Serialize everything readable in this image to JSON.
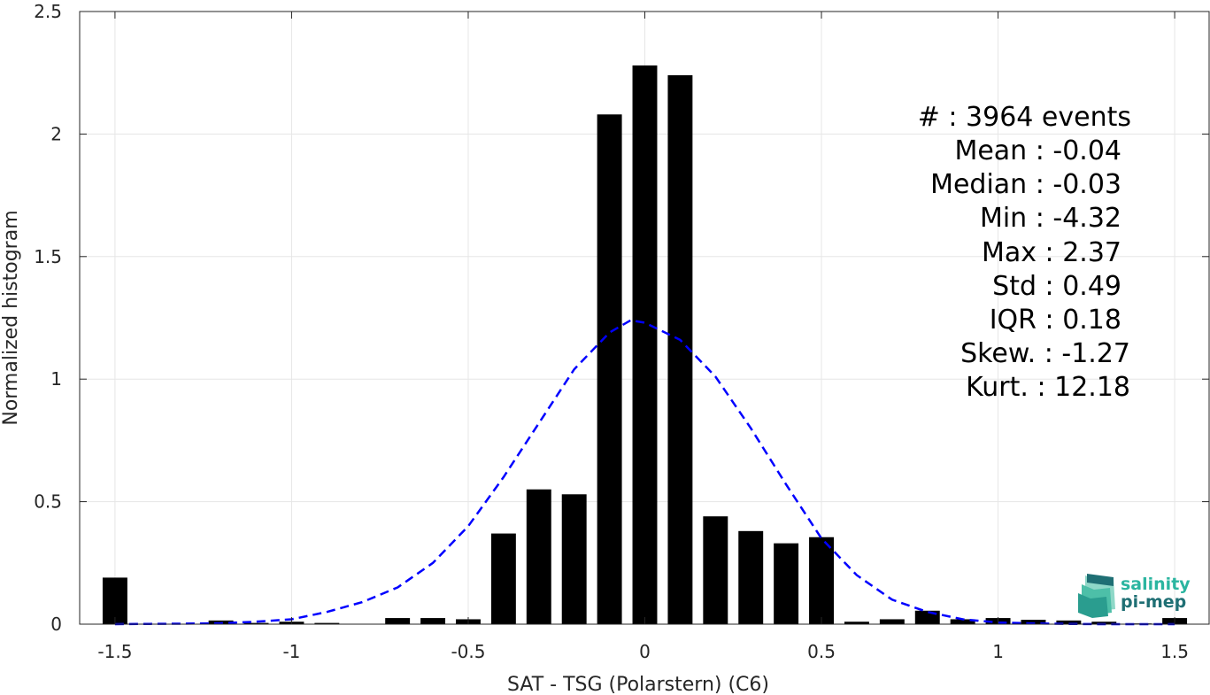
{
  "chart_data": {
    "type": "bar",
    "xlabel": "SAT - TSG (Polarstern) (C6)",
    "ylabel": "Normalized histogram",
    "xlim": [
      -1.6,
      1.6
    ],
    "ylim": [
      0,
      2.5
    ],
    "x_ticks": [
      -1.5,
      -1,
      -0.5,
      0,
      0.5,
      1,
      1.5
    ],
    "x_tick_labels": [
      "-1.5",
      "-1",
      "-0.5",
      "0",
      "0.5",
      "1",
      "1.5"
    ],
    "y_ticks": [
      0,
      0.5,
      1,
      1.5,
      2,
      2.5
    ],
    "y_tick_labels": [
      "0",
      "0.5",
      "1",
      "1.5",
      "2",
      "2.5"
    ],
    "grid": true,
    "bar_width": 0.07,
    "series": [
      {
        "type": "bar",
        "color": "#000000",
        "x": [
          -1.5,
          -1.2,
          -1.1,
          -1.0,
          -0.9,
          -0.8,
          -0.7,
          -0.6,
          -0.5,
          -0.4,
          -0.3,
          -0.2,
          -0.1,
          0.0,
          0.1,
          0.2,
          0.3,
          0.4,
          0.5,
          0.6,
          0.7,
          0.8,
          0.9,
          1.0,
          1.1,
          1.2,
          1.3,
          1.4,
          1.5
        ],
        "values": [
          0.19,
          0.015,
          0.005,
          0.01,
          0.005,
          0.0,
          0.025,
          0.025,
          0.02,
          0.37,
          0.55,
          0.53,
          2.08,
          2.28,
          2.24,
          0.44,
          0.38,
          0.33,
          0.355,
          0.01,
          0.02,
          0.055,
          0.02,
          0.025,
          0.018,
          0.015,
          0.01,
          0.003,
          0.025
        ]
      },
      {
        "type": "line",
        "style": "dashed",
        "color": "#0000ff",
        "x": [
          -1.5,
          -1.4,
          -1.3,
          -1.2,
          -1.1,
          -1.0,
          -0.9,
          -0.8,
          -0.7,
          -0.6,
          -0.5,
          -0.4,
          -0.3,
          -0.2,
          -0.1,
          -0.04,
          0.0,
          0.1,
          0.2,
          0.3,
          0.4,
          0.5,
          0.6,
          0.7,
          0.8,
          0.9,
          1.0,
          1.1,
          1.2,
          1.3,
          1.4,
          1.5
        ],
        "values": [
          0.0,
          0.001,
          0.002,
          0.004,
          0.01,
          0.02,
          0.05,
          0.09,
          0.15,
          0.25,
          0.4,
          0.6,
          0.82,
          1.04,
          1.19,
          1.24,
          1.23,
          1.16,
          1.01,
          0.8,
          0.57,
          0.35,
          0.2,
          0.1,
          0.05,
          0.02,
          0.007,
          0.003,
          0.001,
          0.0,
          0.0,
          0.0
        ]
      }
    ]
  },
  "stats": [
    {
      "label": "#  : 3964 events"
    },
    {
      "label": "Mean : -0.04"
    },
    {
      "label": "Median : -0.03"
    },
    {
      "label": "Min : -4.32"
    },
    {
      "label": "Max : 2.37"
    },
    {
      "label": "Std : 0.49"
    },
    {
      "label": "IQR : 0.18"
    },
    {
      "label": "Skew. : -1.27"
    },
    {
      "label": "Kurt. : 12.18"
    }
  ],
  "logo": {
    "line1": "salinity",
    "line2": "pi-mep",
    "color1": "#2bb5a0",
    "color2": "#1f6f74"
  }
}
